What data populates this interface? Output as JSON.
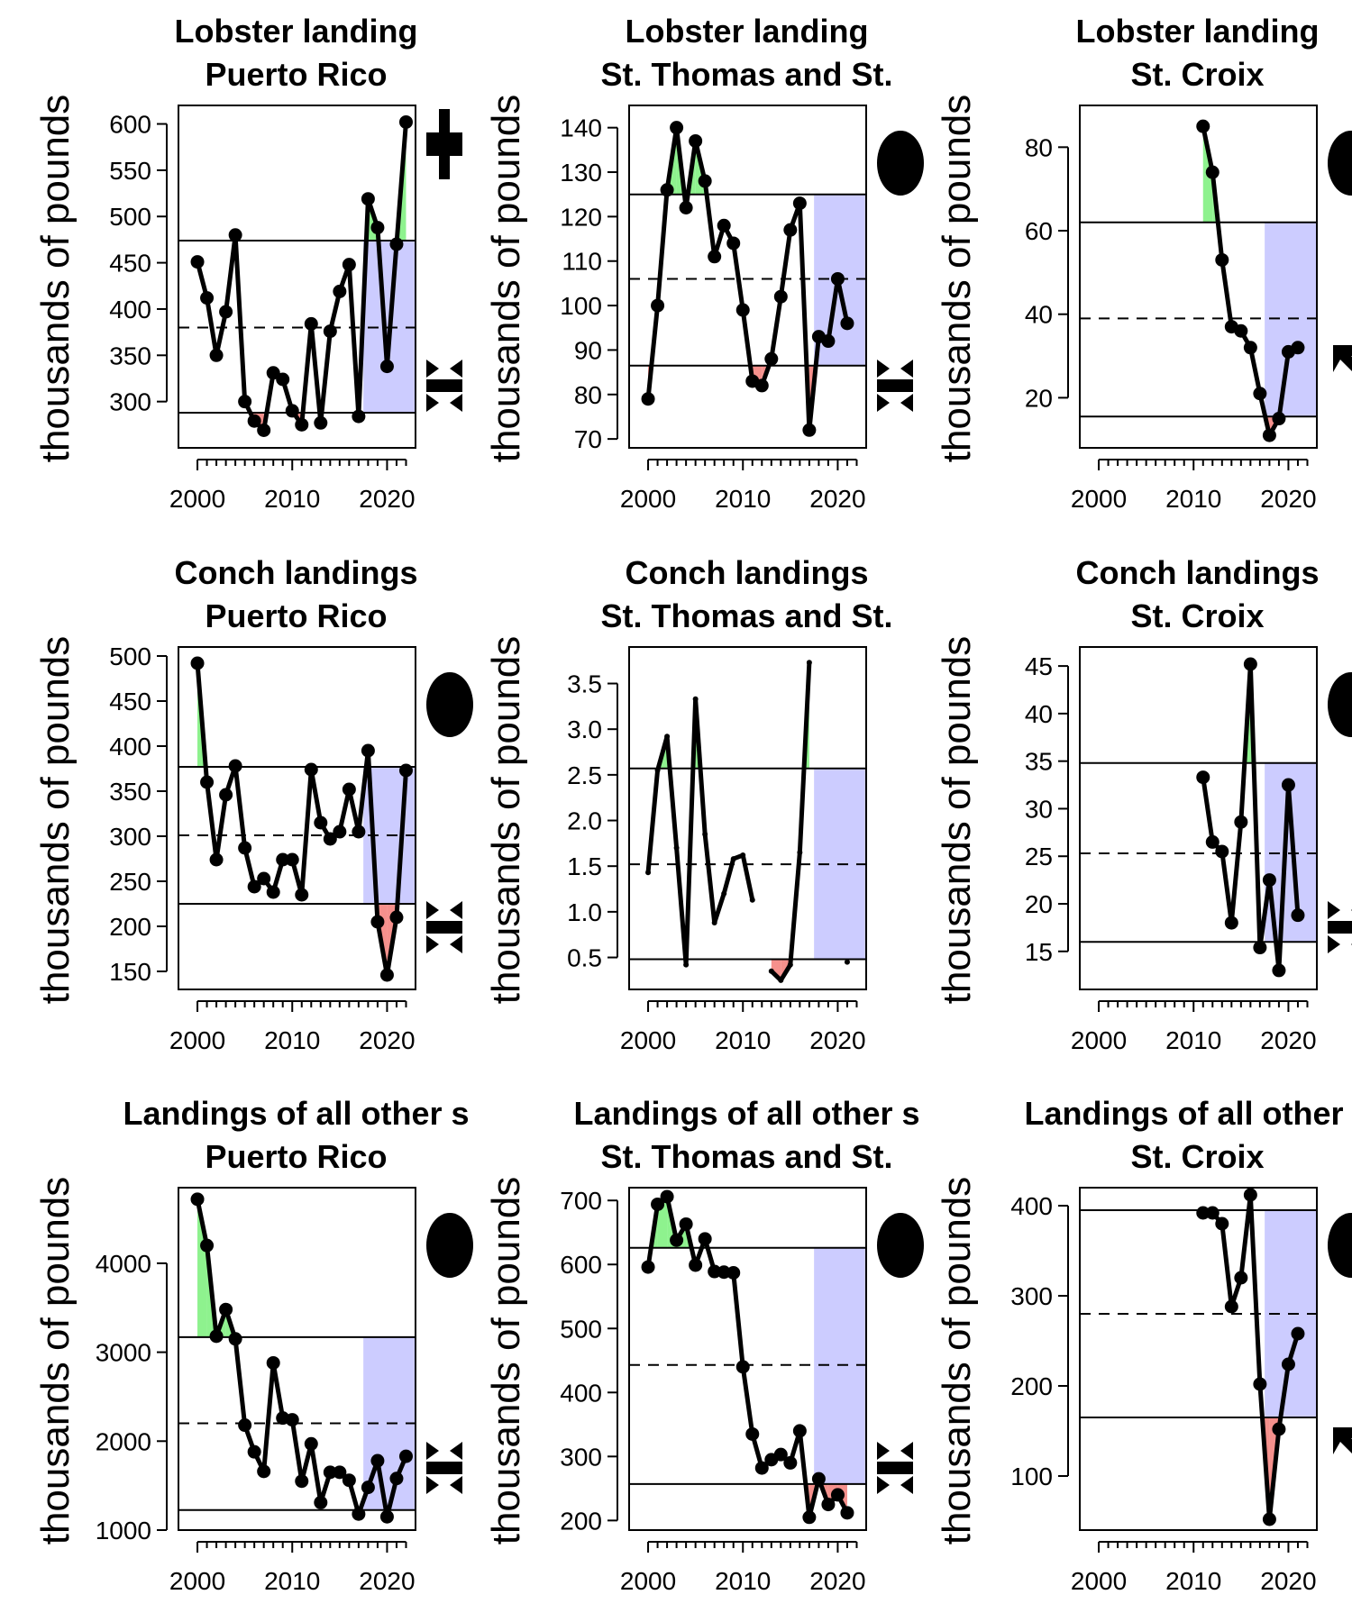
{
  "chart_data": [
    {
      "type": "line",
      "title": [
        "Lobster landing",
        "Puerto Rico"
      ],
      "ylabel": "thousands of pounds",
      "xlim": [
        1998,
        2023
      ],
      "ylim": [
        250,
        620
      ],
      "xticks": [
        2000,
        2010,
        2020
      ],
      "yticks": [
        300,
        350,
        400,
        450,
        500,
        550,
        600
      ],
      "mean": 380,
      "upper": 474,
      "lower": 288,
      "shade_from": 2017.5,
      "x": [
        2000,
        2001,
        2002,
        2003,
        2004,
        2005,
        2006,
        2007,
        2008,
        2009,
        2010,
        2011,
        2012,
        2013,
        2014,
        2015,
        2016,
        2017,
        2018,
        2019,
        2020,
        2021,
        2022
      ],
      "y": [
        451,
        412,
        350,
        397,
        480,
        300,
        279,
        269,
        331,
        324,
        290,
        275,
        384,
        277,
        376,
        419,
        448,
        284,
        519,
        488,
        338,
        470,
        602
      ],
      "point_size": "large",
      "right_symbol": "up-down"
    },
    {
      "type": "line",
      "title": [
        "Lobster landing",
        "St. Thomas and St."
      ],
      "ylabel": "thousands of pounds",
      "xlim": [
        1998,
        2023
      ],
      "ylim": [
        68,
        145
      ],
      "xticks": [
        2000,
        2010,
        2020
      ],
      "yticks": [
        70,
        80,
        90,
        100,
        110,
        120,
        130,
        140
      ],
      "mean": 106,
      "upper": 125,
      "lower": 86.5,
      "shade_from": 2017.5,
      "x": [
        2000,
        2001,
        2002,
        2003,
        2004,
        2005,
        2006,
        2007,
        2008,
        2009,
        2010,
        2011,
        2012,
        2013,
        2014,
        2015,
        2016,
        2017,
        2018,
        2019,
        2020,
        2021
      ],
      "y": [
        79,
        100,
        126,
        140,
        122,
        137,
        128,
        111,
        118,
        114,
        99,
        83,
        82,
        88,
        102,
        117,
        123,
        72,
        93,
        92,
        106,
        96
      ],
      "point_size": "large",
      "right_symbol": "circle-down"
    },
    {
      "type": "line",
      "title": [
        "Lobster landing",
        "St. Croix"
      ],
      "ylabel": "thousands of pounds",
      "xlim": [
        1998,
        2023
      ],
      "ylim": [
        8,
        90
      ],
      "xticks": [
        2000,
        2010,
        2020
      ],
      "yticks": [
        20,
        40,
        60,
        80
      ],
      "mean": 39,
      "upper": 62,
      "lower": 15.5,
      "shade_from": 2017.5,
      "x": [
        2011,
        2012,
        2013,
        2014,
        2015,
        2016,
        2017,
        2018,
        2019,
        2020,
        2021
      ],
      "y": [
        85,
        74,
        53,
        37,
        36,
        32,
        21,
        11,
        15,
        31,
        32
      ],
      "point_size": "large",
      "right_symbol": "circle-arrow"
    },
    {
      "type": "line",
      "title": [
        "Conch landings",
        "Puerto Rico"
      ],
      "ylabel": "thousands of pounds",
      "xlim": [
        1998,
        2023
      ],
      "ylim": [
        130,
        510
      ],
      "xticks": [
        2000,
        2010,
        2020
      ],
      "yticks": [
        150,
        200,
        250,
        300,
        350,
        400,
        450,
        500
      ],
      "mean": 301,
      "upper": 377,
      "lower": 225,
      "shade_from": 2017.5,
      "x": [
        2000,
        2001,
        2002,
        2003,
        2004,
        2005,
        2006,
        2007,
        2008,
        2009,
        2010,
        2011,
        2012,
        2013,
        2014,
        2015,
        2016,
        2017,
        2018,
        2019,
        2020,
        2021,
        2022
      ],
      "y": [
        492,
        360,
        274,
        346,
        378,
        287,
        244,
        253,
        238,
        274,
        274,
        235,
        374,
        315,
        297,
        305,
        352,
        305,
        395,
        205,
        146,
        210,
        373
      ],
      "point_size": "large",
      "right_symbol": "circle-down"
    },
    {
      "type": "line",
      "title": [
        "Conch landings",
        "St. Thomas and St."
      ],
      "ylabel": "thousands of pounds",
      "xlim": [
        1998,
        2023
      ],
      "ylim": [
        0.15,
        3.9
      ],
      "xticks": [
        2000,
        2010,
        2020
      ],
      "yticks": [
        0.5,
        1.0,
        1.5,
        2.0,
        2.5,
        3.0,
        3.5
      ],
      "ytick_labels": [
        "0.5",
        "1.0",
        "1.5",
        "2.0",
        "2.5",
        "3.0",
        "3.5"
      ],
      "mean": 1.52,
      "upper": 2.57,
      "lower": 0.48,
      "shade_from": 2017.5,
      "x": [
        2000,
        2001,
        2002,
        2003,
        2004,
        2005,
        2006,
        2007,
        2008,
        2009,
        2010,
        2011,
        null,
        2013,
        2014,
        2015,
        2016,
        2017,
        2018,
        2019,
        2020,
        2021
      ],
      "y": [
        1.43,
        2.55,
        2.92,
        1.7,
        0.42,
        3.33,
        1.85,
        0.88,
        1.2,
        1.58,
        1.62,
        1.13,
        null,
        0.35,
        0.25,
        0.42,
        1.65,
        3.73,
        null,
        null,
        null,
        0.45
      ],
      "point_size": "small",
      "right_symbol": "none"
    },
    {
      "type": "line",
      "title": [
        "Conch landings",
        "St. Croix"
      ],
      "ylabel": "thousands of pounds",
      "xlim": [
        1998,
        2023
      ],
      "ylim": [
        11,
        47
      ],
      "xticks": [
        2000,
        2010,
        2020
      ],
      "yticks": [
        15,
        20,
        25,
        30,
        35,
        40,
        45
      ],
      "mean": 25.3,
      "upper": 34.8,
      "lower": 16,
      "shade_from": 2017.5,
      "x": [
        2011,
        2012,
        2013,
        2014,
        2015,
        2016,
        2017,
        2018,
        2019,
        2020,
        2021
      ],
      "y": [
        33.3,
        26.5,
        25.5,
        18,
        28.6,
        45.2,
        15.4,
        22.5,
        13,
        32.5,
        18.8
      ],
      "point_size": "large",
      "right_symbol": "circle-down"
    },
    {
      "type": "line",
      "title": [
        "Landings of all other s",
        "Puerto Rico"
      ],
      "ylabel": "thousands of pounds",
      "xlim": [
        1998,
        2023
      ],
      "ylim": [
        1000,
        4850
      ],
      "xticks": [
        2000,
        2010,
        2020
      ],
      "yticks": [
        1000,
        2000,
        3000,
        4000
      ],
      "mean": 2200,
      "upper": 3170,
      "lower": 1225,
      "shade_from": 2017.5,
      "x": [
        2000,
        2001,
        2002,
        2003,
        2004,
        2005,
        2006,
        2007,
        2008,
        2009,
        2010,
        2011,
        2012,
        2013,
        2014,
        2015,
        2016,
        2017,
        2018,
        2019,
        2020,
        2021,
        2022
      ],
      "y": [
        4720,
        4200,
        3180,
        3480,
        3150,
        2180,
        1880,
        1660,
        2880,
        2260,
        2240,
        1550,
        1970,
        1310,
        1650,
        1650,
        1560,
        1180,
        1480,
        1780,
        1150,
        1580,
        1830
      ],
      "point_size": "large",
      "right_symbol": "circle-down"
    },
    {
      "type": "line",
      "title": [
        "Landings of all other s",
        "St. Thomas and St."
      ],
      "ylabel": "thousands of pounds",
      "xlim": [
        1998,
        2023
      ],
      "ylim": [
        185,
        720
      ],
      "xticks": [
        2000,
        2010,
        2020
      ],
      "yticks": [
        200,
        300,
        400,
        500,
        600,
        700
      ],
      "mean": 443,
      "upper": 626,
      "lower": 257,
      "shade_from": 2017.5,
      "x": [
        2000,
        2001,
        2002,
        2003,
        2004,
        2005,
        2006,
        2007,
        2008,
        2009,
        2010,
        2011,
        2012,
        2013,
        2014,
        2015,
        2016,
        2017,
        2018,
        2019,
        2020,
        2021
      ],
      "y": [
        596,
        694,
        706,
        638,
        663,
        599,
        640,
        589,
        588,
        587,
        440,
        335,
        282,
        295,
        303,
        290,
        340,
        205,
        265,
        225,
        240,
        212
      ],
      "point_size": "large",
      "right_symbol": "circle-down"
    },
    {
      "type": "line",
      "title": [
        "Landings of all other s",
        "St. Croix"
      ],
      "ylabel": "thousands of pounds",
      "xlim": [
        1998,
        2023
      ],
      "ylim": [
        40,
        420
      ],
      "xticks": [
        2000,
        2010,
        2020
      ],
      "yticks": [
        100,
        200,
        300,
        400
      ],
      "mean": 280,
      "upper": 395,
      "lower": 165,
      "shade_from": 2017.5,
      "x": [
        2011,
        2012,
        2013,
        2014,
        2015,
        2016,
        2017,
        2018,
        2019,
        2020,
        2021
      ],
      "y": [
        392,
        392,
        380,
        288,
        320,
        412,
        202,
        52,
        152,
        224,
        258
      ],
      "point_size": "large",
      "right_symbol": "circle-arrow"
    }
  ]
}
